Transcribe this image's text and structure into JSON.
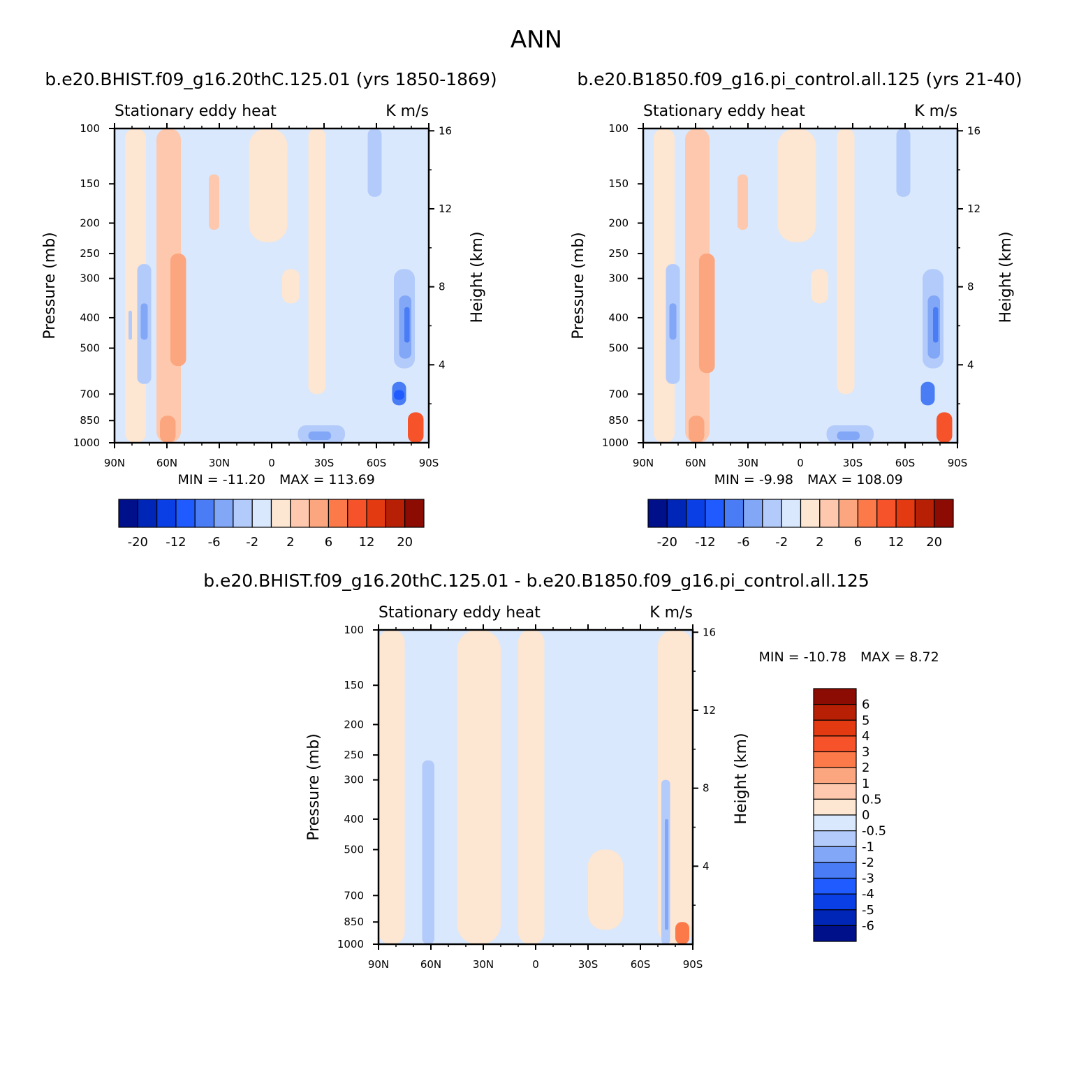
{
  "title": "ANN",
  "panel_titles": {
    "p1": "b.e20.BHIST.f09_g16.20thC.125.01 (yrs 1850-1869)",
    "p2": "b.e20.B1850.f09_g16.pi_control.all.125 (yrs 21-40)",
    "p3": "b.e20.BHIST.f09_g16.20thC.125.01 - b.e20.B1850.f09_g16.pi_control.all.125"
  },
  "chart_data": [
    {
      "type": "heatmap",
      "title": "Stationary eddy heat",
      "units": "K m/s",
      "xlabel": "",
      "ylabel": "Pressure (mb)",
      "ylabel_right": "Height (km)",
      "x_ticks": [
        "90N",
        "60N",
        "30N",
        "0",
        "30S",
        "60S",
        "90S"
      ],
      "y_ticks": [
        100,
        150,
        200,
        250,
        300,
        400,
        500,
        700,
        850,
        1000
      ],
      "y_scale": "log",
      "ylim": [
        1000,
        100
      ],
      "y_right_ticks": [
        16,
        12,
        8,
        4
      ],
      "min_label": "MIN = -11.20",
      "max_label": "MAX = 113.69",
      "min": -11.2,
      "max": 113.69,
      "colorbar_levels": [
        -20,
        -16,
        -12,
        -8,
        -6,
        -4,
        -2,
        0,
        2,
        4,
        6,
        8,
        12,
        16,
        20
      ],
      "colorbar_labels": [
        "-20",
        "-12",
        "-6",
        "-2",
        "2",
        "6",
        "12",
        "20"
      ]
    },
    {
      "type": "heatmap",
      "title": "Stationary eddy heat",
      "units": "K m/s",
      "xlabel": "",
      "ylabel": "Pressure (mb)",
      "ylabel_right": "Height (km)",
      "x_ticks": [
        "90N",
        "60N",
        "30N",
        "0",
        "30S",
        "60S",
        "90S"
      ],
      "y_ticks": [
        100,
        150,
        200,
        250,
        300,
        400,
        500,
        700,
        850,
        1000
      ],
      "y_scale": "log",
      "ylim": [
        1000,
        100
      ],
      "y_right_ticks": [
        16,
        12,
        8,
        4
      ],
      "min_label": "MIN = -9.98",
      "max_label": "MAX = 108.09",
      "min": -9.98,
      "max": 108.09,
      "colorbar_levels": [
        -20,
        -16,
        -12,
        -8,
        -6,
        -4,
        -2,
        0,
        2,
        4,
        6,
        8,
        12,
        16,
        20
      ],
      "colorbar_labels": [
        "-20",
        "-12",
        "-6",
        "-2",
        "2",
        "6",
        "12",
        "20"
      ]
    },
    {
      "type": "heatmap",
      "title": "Stationary eddy heat",
      "units": "K m/s",
      "xlabel": "",
      "ylabel": "Pressure (mb)",
      "ylabel_right": "Height (km)",
      "x_ticks": [
        "90N",
        "60N",
        "30N",
        "0",
        "30S",
        "60S",
        "90S"
      ],
      "y_ticks": [
        100,
        150,
        200,
        250,
        300,
        400,
        500,
        700,
        850,
        1000
      ],
      "y_scale": "log",
      "ylim": [
        1000,
        100
      ],
      "y_right_ticks": [
        16,
        12,
        8,
        4
      ],
      "min_label": "MIN = -10.78",
      "max_label": "MAX = 8.72",
      "min": -10.78,
      "max": 8.72,
      "colorbar_levels": [
        -6,
        -5,
        -4,
        -3,
        -2,
        -1,
        -0.5,
        0,
        0.5,
        1,
        2,
        3,
        4,
        5,
        6
      ],
      "colorbar_labels": [
        "6",
        "5",
        "4",
        "3",
        "2",
        "1",
        "0.5",
        "0",
        "-0.5",
        "-1",
        "-2",
        "-3",
        "-4",
        "-5",
        "-6"
      ]
    }
  ],
  "palette": [
    "#000f8a",
    "#0026b8",
    "#0a3fe6",
    "#1f5bff",
    "#4a7df5",
    "#82a7f7",
    "#b3cbfb",
    "#d9e8fc",
    "#fde6d2",
    "#fdc8ad",
    "#fca67f",
    "#fc7a4a",
    "#f7532b",
    "#e33a12",
    "#b72005",
    "#8c0b03"
  ]
}
